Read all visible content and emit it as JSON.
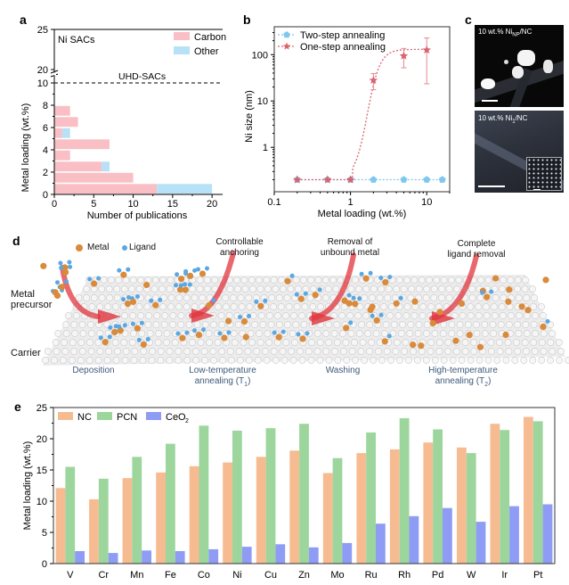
{
  "panels": {
    "a": "a",
    "b": "b",
    "c": "c",
    "d": "d",
    "e": "e"
  },
  "chart_data": [
    {
      "id": "a",
      "type": "bar",
      "orientation": "horizontal-stacked",
      "title": "Ni SACs",
      "annotation": "UHD-SACs",
      "threshold_line": 10,
      "xlabel": "Number of publications",
      "ylabel": "Metal loading (wt.%)",
      "xlim": [
        0,
        21
      ],
      "xticks": [
        0,
        5,
        10,
        15,
        20
      ],
      "yticks": [
        0,
        2,
        4,
        6,
        8,
        10,
        20,
        25
      ],
      "axis_break": [
        10,
        20
      ],
      "legend": "top-right",
      "bins": [
        [
          0,
          1
        ],
        [
          1,
          2
        ],
        [
          2,
          3
        ],
        [
          3,
          4
        ],
        [
          4,
          5
        ],
        [
          5,
          6
        ],
        [
          6,
          7
        ],
        [
          7,
          8
        ]
      ],
      "series": [
        {
          "name": "Carbon",
          "color": "#f9bfc4",
          "values": [
            13,
            10,
            6,
            2,
            7,
            1,
            3,
            2
          ]
        },
        {
          "name": "Other",
          "color": "#b7e1f7",
          "values": [
            7,
            0,
            1,
            0,
            0,
            1,
            0,
            0
          ]
        }
      ]
    },
    {
      "id": "b",
      "type": "line",
      "xscale": "log",
      "yscale": "log",
      "xlabel": "Metal loading (wt.%)",
      "ylabel": "Ni size (nm)",
      "xlim": [
        0.1,
        20
      ],
      "ylim": [
        0.11,
        400
      ],
      "xticks": [
        0.1,
        1,
        10
      ],
      "xtick_labels": [
        "0.1",
        "1",
        "10"
      ],
      "yticks": [
        1,
        10,
        100
      ],
      "ytick_labels": [
        "1",
        "10",
        "100"
      ],
      "legend": "top-left",
      "series": [
        {
          "name": "Two-step annealing",
          "color": "#7ec8ee",
          "marker": "pentagon",
          "x": [
            0.2,
            0.5,
            1,
            2,
            5,
            10,
            16
          ],
          "y": [
            0.2,
            0.2,
            0.2,
            0.2,
            0.2,
            0.2,
            0.2
          ]
        },
        {
          "name": "One-step annealing",
          "color": "#d9646f",
          "marker": "star",
          "x": [
            0.2,
            0.5,
            1,
            2,
            5,
            10
          ],
          "y": [
            0.2,
            0.2,
            0.2,
            28,
            94,
            126
          ],
          "err_low": [
            0,
            0,
            0,
            17.5,
            52,
            23.5
          ],
          "err_high": [
            0,
            0,
            0,
            39,
            136,
            229
          ]
        }
      ]
    },
    {
      "id": "e",
      "type": "bar",
      "ylabel": "Metal loading (wt.%)",
      "ylim": [
        0,
        25
      ],
      "yticks": [
        0,
        5,
        10,
        15,
        20,
        25
      ],
      "legend": "top-left",
      "categories": [
        "V",
        "Cr",
        "Mn",
        "Fe",
        "Co",
        "Ni",
        "Cu",
        "Zn",
        "Mo",
        "Ru",
        "Rh",
        "Pd",
        "W",
        "Ir",
        "Pt"
      ],
      "series": [
        {
          "name": "NC",
          "color": "#f7bb92",
          "values": [
            12.1,
            10.3,
            13.7,
            14.6,
            15.6,
            16.2,
            17.1,
            18.1,
            14.5,
            17.7,
            18.3,
            19.4,
            18.6,
            22.4,
            23.5
          ]
        },
        {
          "name": "PCN",
          "color": "#9dd69d",
          "values": [
            15.5,
            13.6,
            17.1,
            19.2,
            22.1,
            21.3,
            21.7,
            22.4,
            16.9,
            21.0,
            23.3,
            21.5,
            17.7,
            21.4,
            22.8
          ]
        },
        {
          "name": "CeO2",
          "label_main": "CeO",
          "label_sub": "2",
          "color": "#8f9cf5",
          "values": [
            2.0,
            1.7,
            2.1,
            2.0,
            2.3,
            2.7,
            3.1,
            2.6,
            3.3,
            6.4,
            7.6,
            8.9,
            6.7,
            9.2,
            9.5
          ]
        }
      ]
    }
  ],
  "panel_c": {
    "top_label": "10 wt.% Ni",
    "top_sub": "NP",
    "top_suffix": "/NC",
    "bottom_label": "10 wt.% Ni",
    "bottom_sub": "1",
    "bottom_suffix": "/NC"
  },
  "panel_d": {
    "legend_metal": "Metal",
    "legend_ligand": "Ligand",
    "left_labels": {
      "precursor_1": "Metal",
      "precursor_2": "precursor",
      "carrier": "Carrier"
    },
    "top_notes": [
      {
        "line1": "Controllable",
        "line2": "anchoring"
      },
      {
        "line1": "Removal of",
        "line2": "unbound metal"
      },
      {
        "line1": "Complete",
        "line2": "ligand removal"
      }
    ],
    "steps": [
      {
        "line1": "Deposition",
        "line2": ""
      },
      {
        "line1": "Low-temperature",
        "line2": "annealing (T",
        "sub": "1",
        "end": ")"
      },
      {
        "line1": "Washing",
        "line2": ""
      },
      {
        "line1": "High-temperature",
        "line2": "annealing (T",
        "sub": "2",
        "end": ")"
      }
    ],
    "colors": {
      "metal": "#d98a3a",
      "ligand": "#5aa7e3",
      "arrow": "#e0353d",
      "carrier": "#d8d8d8"
    }
  }
}
